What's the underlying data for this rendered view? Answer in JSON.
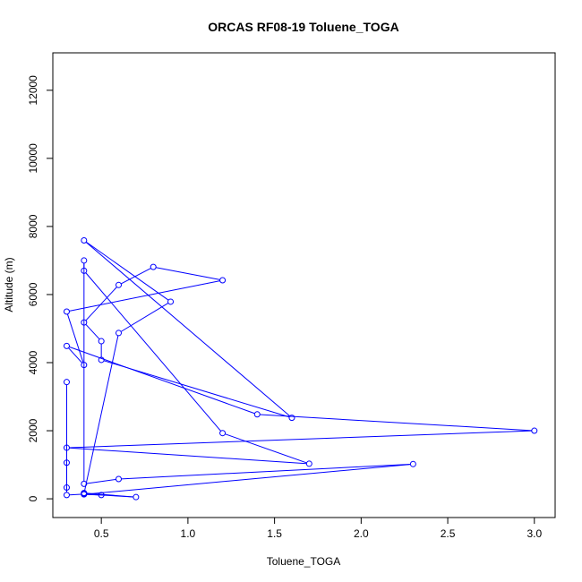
{
  "chart_data": {
    "type": "line",
    "title": "ORCAS RF08-19 Toluene_TOGA",
    "xlabel": "Toluene_TOGA",
    "ylabel": "Altitude (m)",
    "xlim": [
      0.22,
      3.12
    ],
    "ylim": [
      -550,
      13100
    ],
    "xticks": [
      0.5,
      1.0,
      1.5,
      2.0,
      2.5,
      3.0
    ],
    "xtick_labels": [
      "0.5",
      "1.0",
      "1.5",
      "2.0",
      "2.5",
      "3.0"
    ],
    "yticks": [
      0,
      2000,
      4000,
      6000,
      8000,
      10000,
      12000
    ],
    "ytick_labels": [
      "0",
      "2000",
      "4000",
      "6000",
      "8000",
      "10000",
      "12000"
    ],
    "grid": false,
    "series_color": "#0000ff",
    "marker": "open-circle",
    "points": [
      {
        "x": 0.3,
        "y": 3430
      },
      {
        "x": 0.3,
        "y": 330
      },
      {
        "x": 0.3,
        "y": 1060
      },
      {
        "x": 0.3,
        "y": 110
      },
      {
        "x": 0.4,
        "y": 140
      },
      {
        "x": 0.7,
        "y": 50
      },
      {
        "x": 0.4,
        "y": 170
      },
      {
        "x": 0.5,
        "y": 110
      },
      {
        "x": 0.4,
        "y": 130
      },
      {
        "x": 2.3,
        "y": 1020
      },
      {
        "x": 0.6,
        "y": 580
      },
      {
        "x": 0.4,
        "y": 440
      },
      {
        "x": 0.4,
        "y": 7000
      },
      {
        "x": 0.4,
        "y": 6700
      },
      {
        "x": 1.2,
        "y": 1930
      },
      {
        "x": 1.7,
        "y": 1030
      },
      {
        "x": 0.3,
        "y": 1500
      },
      {
        "x": 3.0,
        "y": 2000
      },
      {
        "x": 1.4,
        "y": 2480
      },
      {
        "x": 0.3,
        "y": 4490
      },
      {
        "x": 0.4,
        "y": 3930
      },
      {
        "x": 0.3,
        "y": 5500
      },
      {
        "x": 1.2,
        "y": 6420
      },
      {
        "x": 0.8,
        "y": 6810
      },
      {
        "x": 0.6,
        "y": 6280
      },
      {
        "x": 0.4,
        "y": 5180
      },
      {
        "x": 0.5,
        "y": 4630
      },
      {
        "x": 0.5,
        "y": 4080
      },
      {
        "x": 1.6,
        "y": 2380
      },
      {
        "x": 0.4,
        "y": 7590
      },
      {
        "x": 0.9,
        "y": 5790
      },
      {
        "x": 0.6,
        "y": 4870
      },
      {
        "x": 0.4,
        "y": 150
      }
    ]
  }
}
